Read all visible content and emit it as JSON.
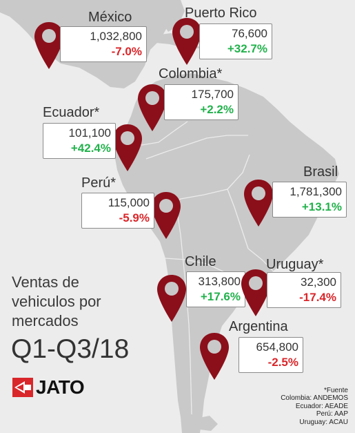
{
  "colors": {
    "background": "#ececec",
    "land": "#c9c9c9",
    "pin": "#8b0f1a",
    "positive": "#22b24c",
    "negative": "#d9262a",
    "logo_red": "#d9262a"
  },
  "title": {
    "lines": [
      "Ventas de",
      "vehiculos por",
      "mercados"
    ],
    "period": "Q1-Q3/18"
  },
  "logo": {
    "text": "JATO",
    "icon": "jato-flag-icon"
  },
  "markets": [
    {
      "id": "mexico",
      "name": "México",
      "value": "1,032,800",
      "change": "-7.0%",
      "trend": "negative"
    },
    {
      "id": "puerto-rico",
      "name": "Puerto Rico",
      "value": "76,600",
      "change": "+32.7%",
      "trend": "positive"
    },
    {
      "id": "colombia",
      "name": "Colombia*",
      "value": "175,700",
      "change": "+2.2%",
      "trend": "positive"
    },
    {
      "id": "ecuador",
      "name": "Ecuador*",
      "value": "101,100",
      "change": "+42.4%",
      "trend": "positive"
    },
    {
      "id": "peru",
      "name": "Perú*",
      "value": "115,000",
      "change": "-5.9%",
      "trend": "negative"
    },
    {
      "id": "brasil",
      "name": "Brasil",
      "value": "1,781,300",
      "change": "+13.1%",
      "trend": "positive"
    },
    {
      "id": "chile",
      "name": "Chile",
      "value": "313,800",
      "change": "+17.6%",
      "trend": "positive"
    },
    {
      "id": "uruguay",
      "name": "Uruguay*",
      "value": "32,300",
      "change": "-17.4%",
      "trend": "negative"
    },
    {
      "id": "argentina",
      "name": "Argentina",
      "value": "654,800",
      "change": "-2.5%",
      "trend": "negative"
    }
  ],
  "sources": {
    "heading": "*Fuente",
    "lines": [
      "Colombia: ANDEMOS",
      "Ecuador: AEADE",
      "Perú: AAP",
      "Uruguay: ACAU"
    ]
  }
}
